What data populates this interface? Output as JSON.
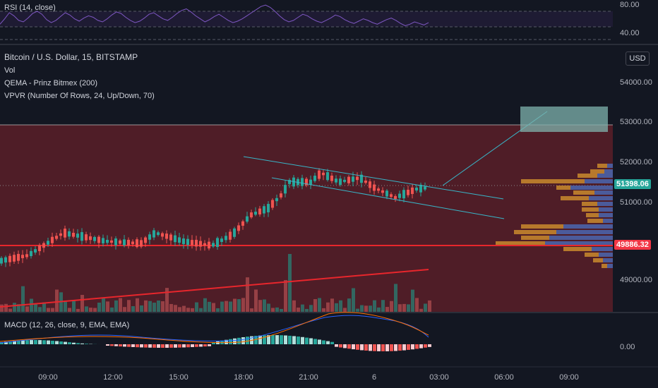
{
  "rsi": {
    "label": "RSI (14, close)",
    "axis_labels": [
      "80.00",
      "40.00"
    ],
    "values": [
      55,
      62,
      70,
      66,
      60,
      58,
      63,
      69,
      72,
      68,
      61,
      57,
      60,
      65,
      70,
      67,
      62,
      59,
      63,
      66,
      64,
      60,
      58,
      62,
      67,
      71,
      69,
      64,
      60,
      57,
      59,
      63,
      68,
      70,
      66,
      62,
      60,
      64,
      69,
      73,
      75,
      71,
      66,
      62,
      58,
      61,
      65,
      68,
      64,
      60,
      57,
      59,
      62,
      66,
      70,
      74,
      78,
      80,
      77,
      72,
      66,
      61,
      58,
      60,
      64,
      68,
      66,
      62,
      59,
      57,
      60,
      63,
      67,
      65,
      61,
      58,
      56,
      59,
      62,
      60,
      57,
      55,
      58,
      61,
      63,
      60,
      56,
      53,
      55,
      58,
      56,
      54,
      57
    ]
  },
  "main_legend": {
    "symbol": "Bitcoin / U.S. Dollar, 15, BITSTAMP",
    "vol": "Vol",
    "qema": "QEMA - Prinz Bitmex (200)",
    "vpvr": "VPVR (Number Of Rows, 24, Up/Down, 70)"
  },
  "currency_button": "USD",
  "price_axis": [
    "54000.00",
    "53000.00",
    "52000.00",
    "51000.00",
    "49000.00"
  ],
  "price_line_labels": {
    "current": "51398.06",
    "current_color": "#26a69a",
    "support": "49886.32",
    "support_color": "#f23645"
  },
  "macd": {
    "label": "MACD (12, 26, close, 9, EMA, EMA)",
    "axis_label": "0.00"
  },
  "time_axis": [
    "09:00",
    "12:00",
    "15:00",
    "18:00",
    "21:00",
    "6",
    "03:00",
    "06:00",
    "09:00"
  ],
  "colors": {
    "up": "#26a69a",
    "down": "#ef5350",
    "zone": "#5a1f28",
    "support_line": "#e8262c",
    "channel": "#38b6c8",
    "target_box": "#7fb3ad"
  }
}
